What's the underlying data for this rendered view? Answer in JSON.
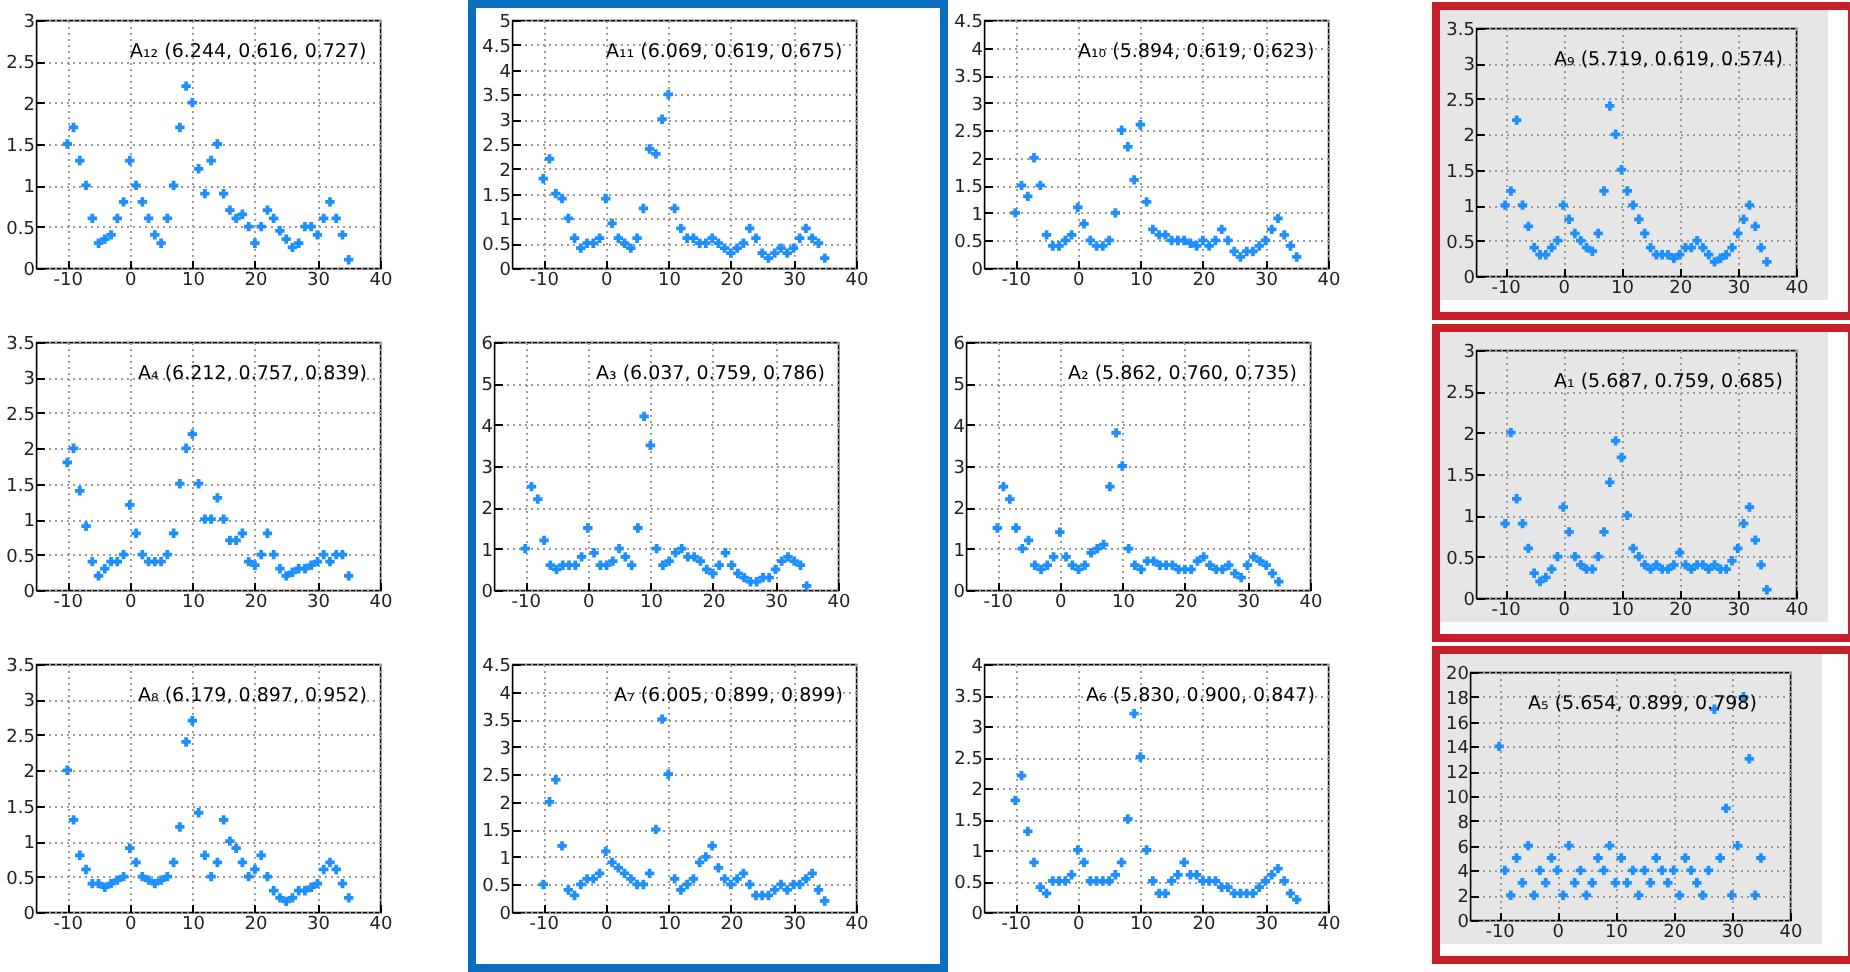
{
  "chart_data": [
    {
      "type": "scatter",
      "marker": "cross",
      "grid": true,
      "legend": "top right",
      "xlim": [
        -15,
        40
      ],
      "xticks": [
        -10,
        0,
        10,
        20,
        30,
        40
      ],
      "ylim": [
        0,
        3
      ],
      "yticks": [
        0,
        0.5,
        1,
        1.5,
        2,
        2.5,
        3
      ],
      "x": [
        -10,
        -9,
        -8,
        -7,
        -6,
        -5,
        -4,
        -3,
        -2,
        -1,
        0,
        1,
        2,
        3,
        4,
        5,
        6,
        7,
        8,
        9,
        10,
        11,
        12,
        13,
        14,
        15,
        16,
        17,
        18,
        19,
        20,
        21,
        22,
        23,
        24,
        25,
        26,
        27,
        28,
        29,
        30,
        31,
        32,
        33,
        34,
        35
      ],
      "series": [
        {
          "name": "A₁₂ (6.244, 0.616, 0.727)",
          "color": "#1e8fff",
          "values": [
            1.5,
            1.7,
            1.3,
            1.0,
            0.6,
            0.3,
            0.35,
            0.4,
            0.6,
            0.8,
            1.3,
            1.0,
            0.8,
            0.6,
            0.4,
            0.3,
            0.6,
            1.0,
            1.7,
            2.2,
            2.0,
            1.2,
            0.9,
            1.3,
            1.5,
            0.9,
            0.7,
            0.6,
            0.65,
            0.5,
            0.3,
            0.5,
            0.7,
            0.6,
            0.45,
            0.35,
            0.25,
            0.3,
            0.5,
            0.5,
            0.4,
            0.6,
            0.8,
            0.6,
            0.4,
            0.1
          ]
        }
      ]
    },
    {
      "type": "scatter",
      "marker": "cross",
      "grid": true,
      "legend": "top right",
      "xlim": [
        -15,
        40
      ],
      "xticks": [
        -10,
        0,
        10,
        20,
        30,
        40
      ],
      "ylim": [
        0,
        5
      ],
      "yticks": [
        0,
        0.5,
        1,
        1.5,
        2,
        2.5,
        3,
        3.5,
        4,
        4.5,
        5
      ],
      "x": [
        -10,
        -9,
        -8,
        -7,
        -6,
        -5,
        -4,
        -3,
        -2,
        -1,
        0,
        1,
        2,
        3,
        4,
        5,
        6,
        7,
        8,
        9,
        10,
        11,
        12,
        13,
        14,
        15,
        16,
        17,
        18,
        19,
        20,
        21,
        22,
        23,
        24,
        25,
        26,
        27,
        28,
        29,
        30,
        31,
        32,
        33,
        34,
        35
      ],
      "series": [
        {
          "name": "A₁₁ (6.069, 0.619, 0.675)",
          "color": "#1e8fff",
          "values": [
            1.8,
            2.2,
            1.5,
            1.4,
            1.0,
            0.6,
            0.4,
            0.5,
            0.5,
            0.6,
            1.4,
            0.9,
            0.6,
            0.5,
            0.4,
            0.6,
            1.2,
            2.4,
            2.3,
            3.0,
            3.5,
            1.2,
            0.8,
            0.6,
            0.6,
            0.5,
            0.5,
            0.6,
            0.5,
            0.4,
            0.3,
            0.4,
            0.5,
            0.8,
            0.6,
            0.3,
            0.2,
            0.3,
            0.4,
            0.3,
            0.4,
            0.6,
            0.8,
            0.6,
            0.5,
            0.2
          ]
        }
      ]
    },
    {
      "type": "scatter",
      "marker": "cross",
      "grid": true,
      "legend": "top right",
      "xlim": [
        -15,
        40
      ],
      "xticks": [
        -10,
        0,
        10,
        20,
        30,
        40
      ],
      "ylim": [
        0,
        4.5
      ],
      "yticks": [
        0,
        0.5,
        1,
        1.5,
        2,
        2.5,
        3,
        3.5,
        4,
        4.5
      ],
      "x": [
        -10,
        -9,
        -8,
        -7,
        -6,
        -5,
        -4,
        -3,
        -2,
        -1,
        0,
        1,
        2,
        3,
        4,
        5,
        6,
        7,
        8,
        9,
        10,
        11,
        12,
        13,
        14,
        15,
        16,
        17,
        18,
        19,
        20,
        21,
        22,
        23,
        24,
        25,
        26,
        27,
        28,
        29,
        30,
        31,
        32,
        33,
        34,
        35
      ],
      "series": [
        {
          "name": "A₁₀ (5.894, 0.619, 0.623)",
          "color": "#1e8fff",
          "values": [
            1.0,
            1.5,
            1.3,
            2.0,
            1.5,
            0.6,
            0.4,
            0.4,
            0.5,
            0.6,
            1.1,
            0.8,
            0.5,
            0.4,
            0.4,
            0.5,
            1.0,
            2.5,
            2.2,
            1.6,
            2.6,
            1.2,
            0.7,
            0.6,
            0.6,
            0.5,
            0.5,
            0.5,
            0.45,
            0.4,
            0.5,
            0.4,
            0.5,
            0.7,
            0.5,
            0.3,
            0.2,
            0.3,
            0.3,
            0.4,
            0.5,
            0.7,
            0.9,
            0.6,
            0.4,
            0.2
          ]
        }
      ]
    },
    {
      "type": "scatter",
      "marker": "cross",
      "grid": true,
      "legend": "top right",
      "xlim": [
        -15,
        40
      ],
      "xticks": [
        -10,
        0,
        10,
        20,
        30,
        40
      ],
      "ylim": [
        0,
        3.5
      ],
      "yticks": [
        0,
        0.5,
        1,
        1.5,
        2,
        2.5,
        3,
        3.5
      ],
      "x": [
        -10,
        -9,
        -8,
        -7,
        -6,
        -5,
        -4,
        -3,
        -2,
        -1,
        0,
        1,
        2,
        3,
        4,
        5,
        6,
        7,
        8,
        9,
        10,
        11,
        12,
        13,
        14,
        15,
        16,
        17,
        18,
        19,
        20,
        21,
        22,
        23,
        24,
        25,
        26,
        27,
        28,
        29,
        30,
        31,
        32,
        33,
        34,
        35
      ],
      "series": [
        {
          "name": "A₉ (5.719, 0.619, 0.574)",
          "color": "#1e8fff",
          "values": [
            1.0,
            1.2,
            2.2,
            1.0,
            0.7,
            0.4,
            0.3,
            0.3,
            0.4,
            0.5,
            1.0,
            0.8,
            0.6,
            0.5,
            0.4,
            0.35,
            0.6,
            1.2,
            2.4,
            2.0,
            1.5,
            1.2,
            1.0,
            0.8,
            0.6,
            0.4,
            0.3,
            0.3,
            0.3,
            0.25,
            0.3,
            0.4,
            0.4,
            0.5,
            0.4,
            0.3,
            0.2,
            0.25,
            0.3,
            0.4,
            0.6,
            0.8,
            1.0,
            0.7,
            0.4,
            0.2
          ]
        }
      ]
    },
    {
      "type": "scatter",
      "marker": "cross",
      "grid": true,
      "legend": "top right",
      "xlim": [
        -15,
        40
      ],
      "xticks": [
        -10,
        0,
        10,
        20,
        30,
        40
      ],
      "ylim": [
        0,
        3.5
      ],
      "yticks": [
        0,
        0.5,
        1,
        1.5,
        2,
        2.5,
        3,
        3.5
      ],
      "x": [
        -10,
        -9,
        -8,
        -7,
        -6,
        -5,
        -4,
        -3,
        -2,
        -1,
        0,
        1,
        2,
        3,
        4,
        5,
        6,
        7,
        8,
        9,
        10,
        11,
        12,
        13,
        14,
        15,
        16,
        17,
        18,
        19,
        20,
        21,
        22,
        23,
        24,
        25,
        26,
        27,
        28,
        29,
        30,
        31,
        32,
        33,
        34,
        35
      ],
      "series": [
        {
          "name": "A₄ (6.212, 0.757, 0.839)",
          "color": "#1e8fff",
          "values": [
            1.8,
            2.0,
            1.4,
            0.9,
            0.4,
            0.2,
            0.3,
            0.4,
            0.4,
            0.5,
            1.2,
            0.8,
            0.5,
            0.4,
            0.4,
            0.4,
            0.5,
            0.8,
            1.5,
            2.0,
            2.2,
            1.5,
            1.0,
            1.0,
            1.3,
            1.0,
            0.7,
            0.7,
            0.8,
            0.4,
            0.35,
            0.5,
            0.8,
            0.5,
            0.3,
            0.2,
            0.25,
            0.3,
            0.3,
            0.35,
            0.4,
            0.5,
            0.4,
            0.5,
            0.5,
            0.2
          ]
        }
      ]
    },
    {
      "type": "scatter",
      "marker": "cross",
      "grid": true,
      "legend": "top right",
      "xlim": [
        -15,
        40
      ],
      "xticks": [
        -10,
        0,
        10,
        20,
        30,
        40
      ],
      "ylim": [
        0,
        6
      ],
      "yticks": [
        0,
        1,
        2,
        3,
        4,
        5,
        6
      ],
      "x": [
        -10,
        -9,
        -8,
        -7,
        -6,
        -5,
        -4,
        -3,
        -2,
        -1,
        0,
        1,
        2,
        3,
        4,
        5,
        6,
        7,
        8,
        9,
        10,
        11,
        12,
        13,
        14,
        15,
        16,
        17,
        18,
        19,
        20,
        21,
        22,
        23,
        24,
        25,
        26,
        27,
        28,
        29,
        30,
        31,
        32,
        33,
        34,
        35
      ],
      "series": [
        {
          "name": "A₃ (6.037, 0.759, 0.786)",
          "color": "#1e8fff",
          "values": [
            1.0,
            2.5,
            2.2,
            1.2,
            0.6,
            0.5,
            0.6,
            0.6,
            0.6,
            0.8,
            1.5,
            0.9,
            0.6,
            0.6,
            0.7,
            1.0,
            0.8,
            0.6,
            1.5,
            4.2,
            3.5,
            1.0,
            0.6,
            0.7,
            0.9,
            1.0,
            0.8,
            0.8,
            0.7,
            0.5,
            0.4,
            0.6,
            0.9,
            0.6,
            0.4,
            0.3,
            0.2,
            0.2,
            0.3,
            0.3,
            0.5,
            0.7,
            0.8,
            0.7,
            0.6,
            0.1
          ]
        }
      ]
    },
    {
      "type": "scatter",
      "marker": "cross",
      "grid": true,
      "legend": "top right",
      "xlim": [
        -15,
        40
      ],
      "xticks": [
        -10,
        0,
        10,
        20,
        30,
        40
      ],
      "ylim": [
        0,
        6
      ],
      "yticks": [
        0,
        1,
        2,
        3,
        4,
        5,
        6
      ],
      "x": [
        -10,
        -9,
        -8,
        -7,
        -6,
        -5,
        -4,
        -3,
        -2,
        -1,
        0,
        1,
        2,
        3,
        4,
        5,
        6,
        7,
        8,
        9,
        10,
        11,
        12,
        13,
        14,
        15,
        16,
        17,
        18,
        19,
        20,
        21,
        22,
        23,
        24,
        25,
        26,
        27,
        28,
        29,
        30,
        31,
        32,
        33,
        34,
        35
      ],
      "series": [
        {
          "name": "A₂ (5.862, 0.760, 0.735)",
          "color": "#1e8fff",
          "values": [
            1.5,
            2.5,
            2.2,
            1.5,
            1.0,
            1.2,
            0.6,
            0.5,
            0.6,
            0.8,
            1.4,
            0.8,
            0.6,
            0.5,
            0.6,
            0.9,
            1.0,
            1.1,
            2.5,
            3.8,
            3.0,
            1.0,
            0.6,
            0.5,
            0.7,
            0.7,
            0.6,
            0.6,
            0.6,
            0.5,
            0.5,
            0.5,
            0.7,
            0.8,
            0.6,
            0.5,
            0.5,
            0.6,
            0.4,
            0.3,
            0.6,
            0.8,
            0.7,
            0.6,
            0.4,
            0.2
          ]
        }
      ]
    },
    {
      "type": "scatter",
      "marker": "cross",
      "grid": true,
      "legend": "top right",
      "xlim": [
        -15,
        40
      ],
      "xticks": [
        -10,
        0,
        10,
        20,
        30,
        40
      ],
      "ylim": [
        0,
        3
      ],
      "yticks": [
        0,
        0.5,
        1,
        1.5,
        2,
        2.5,
        3
      ],
      "x": [
        -10,
        -9,
        -8,
        -7,
        -6,
        -5,
        -4,
        -3,
        -2,
        -1,
        0,
        1,
        2,
        3,
        4,
        5,
        6,
        7,
        8,
        9,
        10,
        11,
        12,
        13,
        14,
        15,
        16,
        17,
        18,
        19,
        20,
        21,
        22,
        23,
        24,
        25,
        26,
        27,
        28,
        29,
        30,
        31,
        32,
        33,
        34,
        35
      ],
      "series": [
        {
          "name": "A₁ (5.687, 0.759, 0.685)",
          "color": "#1e8fff",
          "values": [
            0.9,
            2.0,
            1.2,
            0.9,
            0.6,
            0.3,
            0.2,
            0.25,
            0.35,
            0.5,
            1.1,
            0.8,
            0.5,
            0.4,
            0.35,
            0.35,
            0.5,
            0.8,
            1.4,
            1.9,
            1.7,
            1.0,
            0.6,
            0.5,
            0.4,
            0.35,
            0.4,
            0.35,
            0.35,
            0.4,
            0.55,
            0.4,
            0.35,
            0.4,
            0.4,
            0.35,
            0.4,
            0.35,
            0.35,
            0.45,
            0.6,
            0.9,
            1.1,
            0.7,
            0.4,
            0.1
          ]
        }
      ]
    },
    {
      "type": "scatter",
      "marker": "cross",
      "grid": true,
      "legend": "top right",
      "xlim": [
        -15,
        40
      ],
      "xticks": [
        -10,
        0,
        10,
        20,
        30,
        40
      ],
      "ylim": [
        0,
        3.5
      ],
      "yticks": [
        0,
        0.5,
        1,
        1.5,
        2,
        2.5,
        3,
        3.5
      ],
      "x": [
        -10,
        -9,
        -8,
        -7,
        -6,
        -5,
        -4,
        -3,
        -2,
        -1,
        0,
        1,
        2,
        3,
        4,
        5,
        6,
        7,
        8,
        9,
        10,
        11,
        12,
        13,
        14,
        15,
        16,
        17,
        18,
        19,
        20,
        21,
        22,
        23,
        24,
        25,
        26,
        27,
        28,
        29,
        30,
        31,
        32,
        33,
        34,
        35
      ],
      "series": [
        {
          "name": "A₈ (6.179, 0.897, 0.952)",
          "color": "#1e8fff",
          "values": [
            2.0,
            1.3,
            0.8,
            0.6,
            0.4,
            0.4,
            0.35,
            0.4,
            0.45,
            0.5,
            0.9,
            0.7,
            0.5,
            0.45,
            0.4,
            0.45,
            0.5,
            0.7,
            1.2,
            2.4,
            2.7,
            1.4,
            0.8,
            0.5,
            0.7,
            1.3,
            1.0,
            0.9,
            0.7,
            0.5,
            0.6,
            0.8,
            0.5,
            0.3,
            0.2,
            0.15,
            0.2,
            0.3,
            0.3,
            0.35,
            0.4,
            0.6,
            0.7,
            0.6,
            0.4,
            0.2
          ]
        }
      ]
    },
    {
      "type": "scatter",
      "marker": "cross",
      "grid": true,
      "legend": "top right",
      "xlim": [
        -15,
        40
      ],
      "xticks": [
        -10,
        0,
        10,
        20,
        30,
        40
      ],
      "ylim": [
        0,
        4.5
      ],
      "yticks": [
        0,
        0.5,
        1,
        1.5,
        2,
        2.5,
        3,
        3.5,
        4,
        4.5
      ],
      "x": [
        -10,
        -9,
        -8,
        -7,
        -6,
        -5,
        -4,
        -3,
        -2,
        -1,
        0,
        1,
        2,
        3,
        4,
        5,
        6,
        7,
        8,
        9,
        10,
        11,
        12,
        13,
        14,
        15,
        16,
        17,
        18,
        19,
        20,
        21,
        22,
        23,
        24,
        25,
        26,
        27,
        28,
        29,
        30,
        31,
        32,
        33,
        34,
        35
      ],
      "series": [
        {
          "name": "A₇ (6.005, 0.899, 0.899)",
          "color": "#1e8fff",
          "values": [
            0.5,
            2.0,
            2.4,
            1.2,
            0.4,
            0.3,
            0.5,
            0.6,
            0.6,
            0.7,
            1.1,
            0.9,
            0.8,
            0.7,
            0.6,
            0.5,
            0.5,
            0.7,
            1.5,
            3.5,
            2.5,
            0.6,
            0.4,
            0.5,
            0.6,
            0.9,
            1.0,
            1.2,
            0.8,
            0.6,
            0.5,
            0.6,
            0.7,
            0.5,
            0.3,
            0.3,
            0.3,
            0.4,
            0.5,
            0.4,
            0.5,
            0.5,
            0.6,
            0.7,
            0.4,
            0.2
          ]
        }
      ]
    },
    {
      "type": "scatter",
      "marker": "cross",
      "grid": true,
      "legend": "top right",
      "xlim": [
        -15,
        40
      ],
      "xticks": [
        -10,
        0,
        10,
        20,
        30,
        40
      ],
      "ylim": [
        0,
        4
      ],
      "yticks": [
        0,
        0.5,
        1,
        1.5,
        2,
        2.5,
        3,
        3.5,
        4
      ],
      "x": [
        -10,
        -9,
        -8,
        -7,
        -6,
        -5,
        -4,
        -3,
        -2,
        -1,
        0,
        1,
        2,
        3,
        4,
        5,
        6,
        7,
        8,
        9,
        10,
        11,
        12,
        13,
        14,
        15,
        16,
        17,
        18,
        19,
        20,
        21,
        22,
        23,
        24,
        25,
        26,
        27,
        28,
        29,
        30,
        31,
        32,
        33,
        34,
        35
      ],
      "series": [
        {
          "name": "A₆ (5.830, 0.900, 0.847)",
          "color": "#1e8fff",
          "values": [
            1.8,
            2.2,
            1.3,
            0.8,
            0.4,
            0.3,
            0.5,
            0.5,
            0.5,
            0.6,
            1.0,
            0.8,
            0.5,
            0.5,
            0.5,
            0.5,
            0.6,
            0.8,
            1.5,
            3.2,
            2.5,
            1.0,
            0.5,
            0.3,
            0.3,
            0.5,
            0.6,
            0.8,
            0.6,
            0.6,
            0.5,
            0.5,
            0.5,
            0.4,
            0.4,
            0.3,
            0.3,
            0.3,
            0.3,
            0.4,
            0.5,
            0.6,
            0.7,
            0.5,
            0.3,
            0.2
          ]
        }
      ]
    },
    {
      "type": "scatter",
      "marker": "cross",
      "grid": true,
      "legend": "top left",
      "xlim": [
        -15,
        40
      ],
      "xticks": [
        -10,
        0,
        10,
        20,
        30,
        40
      ],
      "ylim": [
        0,
        20
      ],
      "yticks": [
        0,
        2,
        4,
        6,
        8,
        10,
        12,
        14,
        16,
        18,
        20
      ],
      "x": [
        -10,
        -9,
        -8,
        -7,
        -6,
        -5,
        -4,
        -3,
        -2,
        -1,
        0,
        1,
        2,
        3,
        4,
        5,
        6,
        7,
        8,
        9,
        10,
        11,
        12,
        13,
        14,
        15,
        16,
        17,
        18,
        19,
        20,
        21,
        22,
        23,
        24,
        25,
        26,
        27,
        28,
        29,
        30,
        31,
        32,
        33,
        34,
        35
      ],
      "series": [
        {
          "name": "A₅ (5.654, 0.899, 0.798)",
          "color": "#1e8fff",
          "values": [
            14,
            4,
            2,
            5,
            3,
            6,
            2,
            4,
            3,
            5,
            4,
            2,
            6,
            3,
            4,
            2,
            3,
            5,
            4,
            6,
            3,
            5,
            3,
            4,
            2,
            4,
            3,
            5,
            4,
            3,
            4,
            2,
            5,
            4,
            3,
            2,
            4,
            17,
            5,
            9,
            2,
            6,
            18,
            13,
            2,
            5
          ]
        }
      ]
    }
  ]
}
